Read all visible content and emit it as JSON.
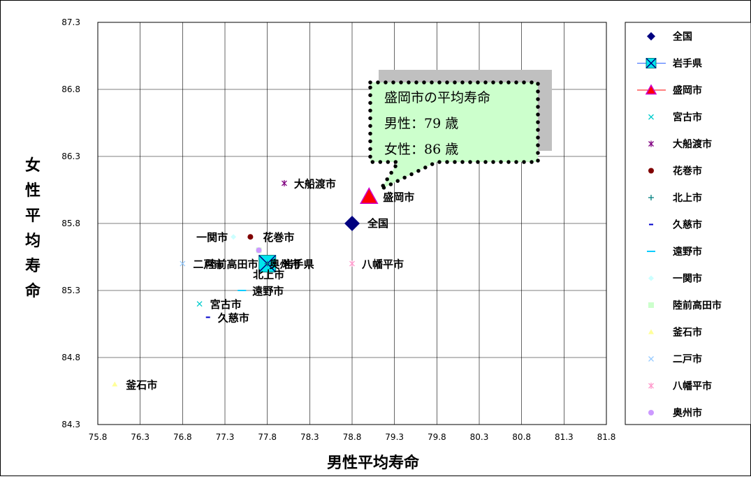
{
  "chart_data": {
    "type": "scatter",
    "xlabel": "男性平均寿命",
    "ylabel": "女性平均寿命",
    "xlim": [
      75.8,
      81.8
    ],
    "ylim": [
      84.3,
      87.3
    ],
    "x_ticks": [
      "75.8",
      "76.3",
      "76.8",
      "77.3",
      "77.8",
      "78.3",
      "78.8",
      "79.3",
      "79.8",
      "80.3",
      "80.8",
      "81.3",
      "81.8"
    ],
    "y_ticks": [
      "84.3",
      "84.8",
      "85.3",
      "85.8",
      "86.3",
      "86.8",
      "87.3"
    ],
    "grid": true,
    "legend_position": "right",
    "series": [
      {
        "name": "全国",
        "x": 78.8,
        "y": 85.8,
        "marker": "diamond",
        "color": "#000080",
        "label": "全国"
      },
      {
        "name": "岩手県",
        "x": 77.8,
        "y": 85.5,
        "marker": "square-x",
        "color": "#00e5ee",
        "label": "岩手県"
      },
      {
        "name": "盛岡市",
        "x": 79.0,
        "y": 86.0,
        "marker": "triangle",
        "color": "#ff0000",
        "label": "盛岡市"
      },
      {
        "name": "宮古市",
        "x": 77.0,
        "y": 85.2,
        "marker": "x",
        "color": "#00cccc",
        "label": "宮古市"
      },
      {
        "name": "大船渡市",
        "x": 78.0,
        "y": 86.1,
        "marker": "star",
        "color": "#800080",
        "label": "大船渡市"
      },
      {
        "name": "花巻市",
        "x": 77.6,
        "y": 85.7,
        "marker": "circle",
        "color": "#800000",
        "label": "花巻市"
      },
      {
        "name": "北上市",
        "x": 77.8,
        "y": 85.5,
        "marker": "plus",
        "color": "#008080",
        "label": "北上市"
      },
      {
        "name": "久慈市",
        "x": 77.1,
        "y": 85.1,
        "marker": "dash",
        "color": "#0000cc",
        "label": "久慈市"
      },
      {
        "name": "遠野市",
        "x": 77.5,
        "y": 85.3,
        "marker": "longdash",
        "color": "#00ccff",
        "label": "遠野市"
      },
      {
        "name": "一関市",
        "x": 77.4,
        "y": 85.7,
        "marker": "diamond-small",
        "color": "#ccffff",
        "label": "一関市"
      },
      {
        "name": "陸前高田市",
        "x": 77.7,
        "y": 85.6,
        "marker": "square",
        "color": "#ccffcc",
        "label": "陸前高田市"
      },
      {
        "name": "釜石市",
        "x": 76.0,
        "y": 84.6,
        "marker": "triangle-small",
        "color": "#ffff99",
        "label": "釜石市"
      },
      {
        "name": "二戸市",
        "x": 76.8,
        "y": 85.5,
        "marker": "x",
        "color": "#99ccff",
        "label": "二戸市"
      },
      {
        "name": "八幡平市",
        "x": 78.8,
        "y": 85.5,
        "marker": "star",
        "color": "#ff99cc",
        "label": "八幡平市"
      },
      {
        "name": "奥州市",
        "x": 77.7,
        "y": 85.6,
        "marker": "circle",
        "color": "#cc99ff",
        "label": "奥州市"
      }
    ],
    "annotation": {
      "lines": [
        "盛岡市の平均寿命",
        "男性：79 歳",
        "女性：86 歳"
      ],
      "fill": "#ccffcc",
      "border": "#000000"
    }
  }
}
